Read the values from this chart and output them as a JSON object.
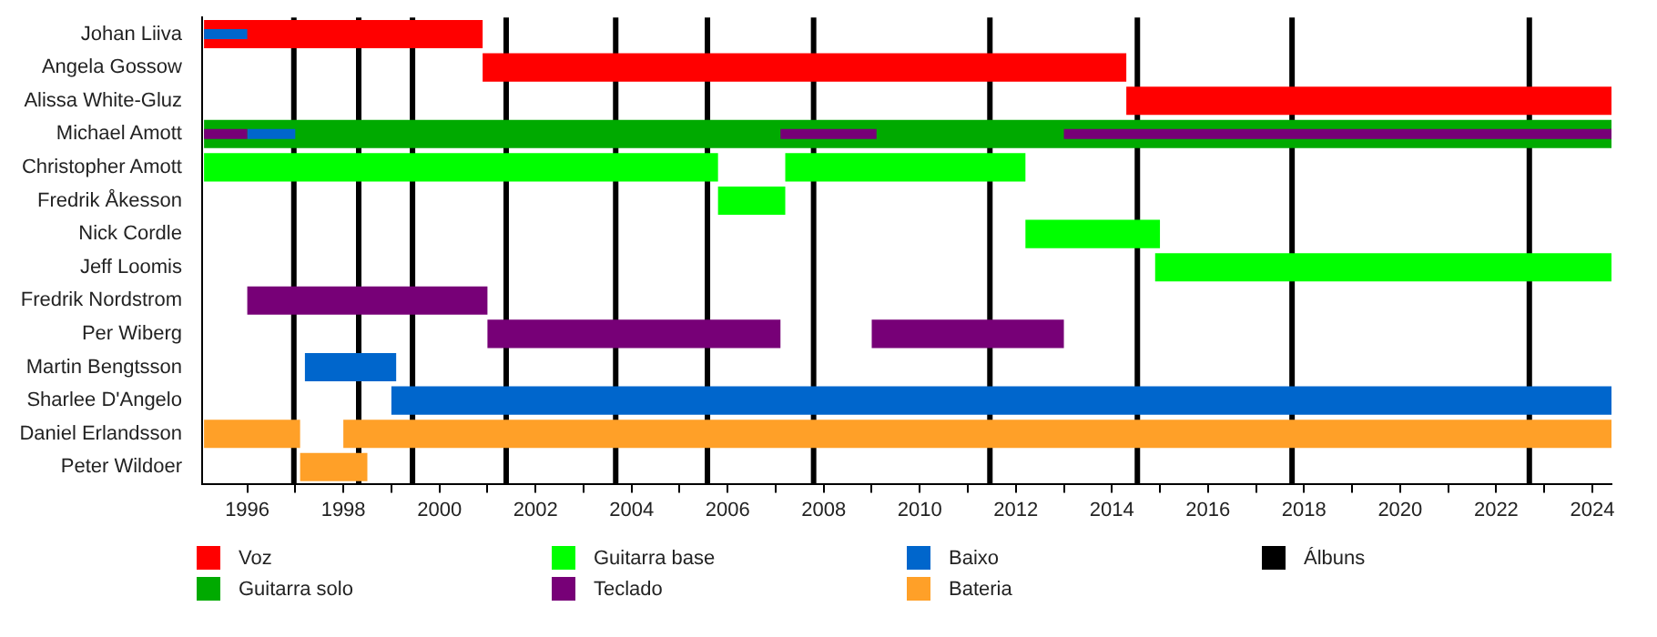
{
  "chart_data": {
    "type": "bar",
    "orientation": "horizontal",
    "legend": "bottom",
    "categories": [
      "Johan Liiva",
      "Angela Gossow",
      "Alissa White-Gluz",
      "Michael Amott",
      "Christopher Amott",
      "Fredrik Åkesson",
      "Nick Cordle",
      "Jeff Loomis",
      "Fredrik Nordstrom",
      "Per Wiberg",
      "Martin Bengtsson",
      "Sharlee D'Angelo",
      "Daniel Erlandsson",
      "Peter Wildoer"
    ],
    "xlim": [
      1995.06,
      2024.4
    ],
    "xticks": [
      1996,
      {
        "value": 1997,
        "label": null
      },
      1998,
      {
        "value": 1999,
        "label": null
      },
      2000,
      {
        "value": 2001,
        "label": null
      },
      2002,
      {
        "value": 2003,
        "label": null
      },
      2004,
      {
        "value": 2005,
        "label": null
      },
      2006,
      {
        "value": 2007,
        "label": null
      },
      2008,
      {
        "value": 2009,
        "label": null
      },
      2010,
      {
        "value": 2011,
        "label": null
      },
      2012,
      {
        "value": 2013,
        "label": null
      },
      2014,
      {
        "value": 2015,
        "label": null
      },
      2016,
      {
        "value": 2017,
        "label": null
      },
      2018,
      {
        "value": 2019,
        "label": null
      },
      2020,
      {
        "value": 2021,
        "label": null
      },
      2022,
      {
        "value": 2023,
        "label": null
      },
      2024
    ],
    "series": [
      {
        "name": "Voz",
        "color": "#ff0000",
        "base": [
          1995.1,
          2000.9,
          2014.3,
          null,
          null,
          null,
          null,
          null,
          null,
          null,
          null,
          null,
          null,
          null
        ],
        "values": [
          5.8,
          13.4,
          10.1,
          null,
          null,
          null,
          null,
          null,
          null,
          null,
          null,
          null,
          null,
          null
        ]
      },
      {
        "name": "Guitarra solo",
        "color": "#00aa00",
        "base": [
          null,
          null,
          null,
          1995.1,
          null,
          null,
          null,
          null,
          null,
          null,
          null,
          null,
          null,
          null
        ],
        "values": [
          null,
          null,
          null,
          29.3,
          null,
          null,
          null,
          null,
          null,
          null,
          null,
          null,
          null,
          null
        ]
      },
      {
        "name": "Guitarra base",
        "color": "#00ff00",
        "base": [
          null,
          null,
          null,
          null,
          1995.1,
          2005.8,
          2012.2,
          2014.9,
          null,
          null,
          null,
          null,
          null,
          null
        ],
        "values": [
          null,
          null,
          null,
          null,
          10.7,
          1.4,
          2.8,
          9.5,
          null,
          null,
          null,
          null,
          null,
          null
        ]
      },
      {
        "color": "#00ff00",
        "base": [
          null,
          null,
          null,
          null,
          2007.2,
          null,
          null,
          null,
          null,
          null,
          null,
          null,
          null,
          null
        ],
        "values": [
          null,
          null,
          null,
          null,
          5.0,
          null,
          null,
          null,
          null,
          null,
          null,
          null,
          null,
          null
        ]
      },
      {
        "name": "Teclado",
        "color": "#770077",
        "base": [
          null,
          null,
          null,
          1995.1,
          null,
          null,
          null,
          null,
          1996.0,
          2001.0,
          null,
          null,
          null,
          null
        ],
        "values": [
          null,
          null,
          null,
          0.9,
          null,
          null,
          null,
          null,
          5.0,
          6.1,
          null,
          null,
          null,
          null
        ]
      },
      {
        "color": "#770077",
        "base": [
          null,
          null,
          null,
          2007.1,
          null,
          null,
          null,
          null,
          null,
          2009.0,
          null,
          null,
          null,
          null
        ],
        "values": [
          null,
          null,
          null,
          2.0,
          null,
          null,
          null,
          null,
          null,
          4.0,
          null,
          null,
          null,
          null
        ]
      },
      {
        "color": "#770077",
        "base": [
          null,
          null,
          null,
          2013.0,
          null,
          null,
          null,
          null,
          null,
          null,
          null,
          null,
          null,
          null
        ],
        "values": [
          null,
          null,
          null,
          11.4,
          null,
          null,
          null,
          null,
          null,
          null,
          null,
          null,
          null,
          null
        ]
      },
      {
        "name": "Baixo",
        "color": "#0066cc",
        "base": [
          1995.1,
          null,
          null,
          1996.0,
          null,
          null,
          null,
          null,
          null,
          null,
          1997.2,
          1999.0,
          null,
          null
        ],
        "values": [
          0.9,
          null,
          null,
          1.0,
          null,
          null,
          null,
          null,
          null,
          null,
          1.9,
          25.4,
          null,
          null
        ]
      },
      {
        "name": "Bateria",
        "color": "#ffa028",
        "base": [
          null,
          null,
          null,
          null,
          null,
          null,
          null,
          null,
          null,
          null,
          null,
          null,
          1995.1,
          1997.1
        ],
        "values": [
          null,
          null,
          null,
          null,
          null,
          null,
          null,
          null,
          null,
          null,
          null,
          null,
          2.0,
          1.4
        ]
      },
      {
        "color": "#ffa028",
        "base": [
          null,
          null,
          null,
          null,
          null,
          null,
          null,
          null,
          null,
          null,
          null,
          null,
          1998.0,
          null
        ],
        "values": [
          null,
          null,
          null,
          null,
          null,
          null,
          null,
          null,
          null,
          null,
          null,
          null,
          26.4,
          null
        ]
      }
    ],
    "ref_lines": [
      {
        "axis": "x",
        "value": 1996.97,
        "label": "Álbuns",
        "color": "#000000"
      },
      {
        "axis": "x",
        "value": 1998.32,
        "color": "#000000"
      },
      {
        "axis": "x",
        "value": 1999.44,
        "color": "#000000"
      },
      {
        "axis": "x",
        "value": 2001.39,
        "color": "#000000"
      },
      {
        "axis": "x",
        "value": 2003.67,
        "color": "#000000"
      },
      {
        "axis": "x",
        "value": 2005.58,
        "color": "#000000"
      },
      {
        "axis": "x",
        "value": 2007.79,
        "color": "#000000"
      },
      {
        "axis": "x",
        "value": 2011.46,
        "color": "#000000"
      },
      {
        "axis": "x",
        "value": 2014.53,
        "color": "#000000"
      },
      {
        "axis": "x",
        "value": 2017.75,
        "color": "#000000"
      },
      {
        "axis": "x",
        "value": 2022.69,
        "color": "#000000"
      }
    ]
  }
}
